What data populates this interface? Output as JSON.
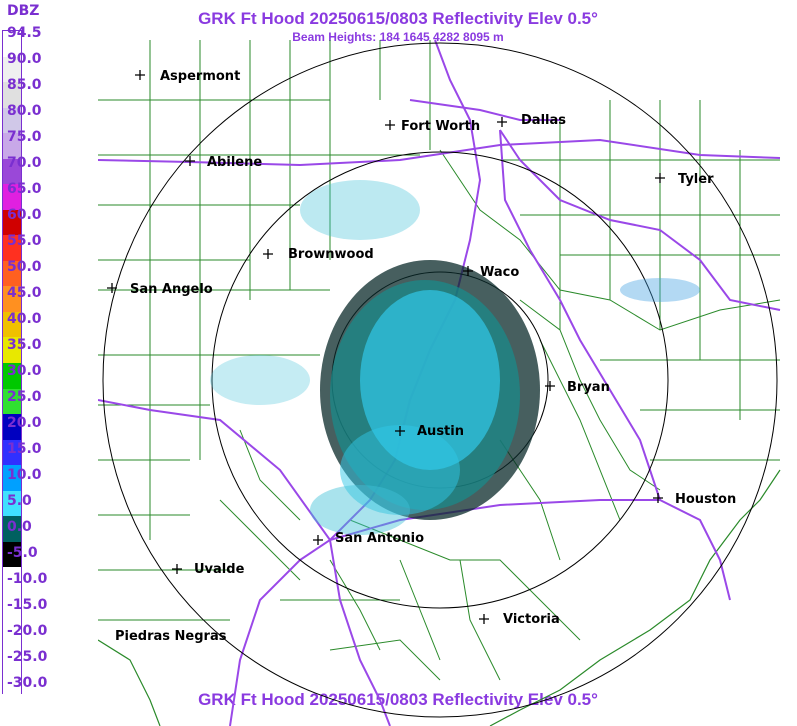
{
  "title": "GRK Ft Hood 20250615/0803 Reflectivity Elev 0.5°",
  "subtitle": "Beam Heights: 184 1645 4282 8095 m",
  "bottom_title": "GRK Ft Hood 20250615/0803 Reflectivity Elev 0.5°",
  "legend": {
    "title": "DBZ",
    "labels": [
      "94.5",
      "90.0",
      "85.0",
      "80.0",
      "75.0",
      "70.0",
      "65.0",
      "60.0",
      "55.0",
      "50.0",
      "45.0",
      "40.0",
      "35.0",
      "30.0",
      "25.0",
      "20.0",
      "15.0",
      "10.0",
      "5.0",
      "0.0",
      "-5.0",
      "-10.0",
      "-15.0",
      "-20.0",
      "-25.0",
      "-30.0"
    ],
    "colors": [
      "#ffffff",
      "#f0f0f0",
      "#e0e0e0",
      "#d0c8e8",
      "#c8a8e8",
      "#9a48d8",
      "#e020e0",
      "#d00000",
      "#ff3020",
      "#ff6020",
      "#ff9020",
      "#f0c000",
      "#e8e800",
      "#00c800",
      "#30e030",
      "#0000c0",
      "#3030ff",
      "#00a0ff",
      "#40e0ff",
      "#006060",
      "#000000",
      "#ffffff",
      "#ffffff",
      "#ffffff",
      "#ffffff",
      "#ffffff"
    ]
  },
  "cities": [
    {
      "name": "Aspermont"
    },
    {
      "name": "Fort Worth"
    },
    {
      "name": "Dallas"
    },
    {
      "name": "Abilene"
    },
    {
      "name": "Tyler"
    },
    {
      "name": "Brownwood"
    },
    {
      "name": "Waco"
    },
    {
      "name": "San Angelo"
    },
    {
      "name": "Bryan"
    },
    {
      "name": "Austin"
    },
    {
      "name": "Houston"
    },
    {
      "name": "San Antonio"
    },
    {
      "name": "Uvalde"
    },
    {
      "name": "Victoria"
    },
    {
      "name": "Piedras Negras"
    }
  ]
}
